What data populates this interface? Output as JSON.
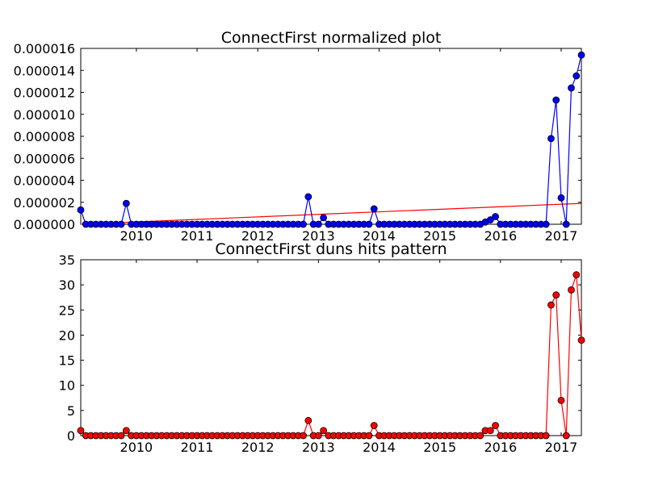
{
  "chart_data": [
    {
      "type": "line",
      "title": "ConnectFirst normalized plot",
      "xlabel": "",
      "ylabel": "",
      "x_ticks": [
        "2010",
        "2011",
        "2012",
        "2013",
        "2014",
        "2015",
        "2016",
        "2017"
      ],
      "x_range": [
        "2009-02",
        "2017-05"
      ],
      "y_ticks": [
        "0.000000",
        "0.000002",
        "0.000004",
        "0.000006",
        "0.000008",
        "0.000010",
        "0.000012",
        "0.000014",
        "0.000016"
      ],
      "ylim": [
        0,
        1.6e-05
      ],
      "grid": false,
      "legend": "none",
      "series": [
        {
          "color": "#0000ff",
          "marker": "circle",
          "points": [
            {
              "x": "2009-02",
              "y": 1.3e-06
            },
            {
              "x": "2009-11",
              "y": 1.9e-06
            },
            {
              "x": "2012-11",
              "y": 2.5e-06
            },
            {
              "x": "2013-02",
              "y": 6e-07
            },
            {
              "x": "2013-12",
              "y": 1.4e-06
            },
            {
              "x": "2015-10",
              "y": 2e-07
            },
            {
              "x": "2015-11",
              "y": 4e-07
            },
            {
              "x": "2015-12",
              "y": 7e-07
            },
            {
              "x": "2016-11",
              "y": 7.8e-06
            },
            {
              "x": "2016-12",
              "y": 1.13e-05
            },
            {
              "x": "2017-01",
              "y": 2.4e-06
            },
            {
              "x": "2017-02",
              "y": 0.0
            },
            {
              "x": "2017-03",
              "y": 1.24e-05
            },
            {
              "x": "2017-04",
              "y": 1.35e-05
            },
            {
              "x": "2017-05",
              "y": 1.54e-05
            }
          ]
        }
      ],
      "trend_line": {
        "color": "#ff0000",
        "x": [
          "2009-02",
          "2017-05"
        ],
        "y": [
          0.0,
          1.9e-06
        ]
      }
    },
    {
      "type": "line",
      "title": "ConnectFirst duns hits pattern",
      "xlabel": "",
      "ylabel": "",
      "x_ticks": [
        "2010",
        "2011",
        "2012",
        "2013",
        "2014",
        "2015",
        "2016",
        "2017"
      ],
      "x_range": [
        "2009-02",
        "2017-05"
      ],
      "y_ticks": [
        "0",
        "5",
        "10",
        "15",
        "20",
        "25",
        "30",
        "35"
      ],
      "ylim": [
        0,
        35
      ],
      "grid": false,
      "legend": "none",
      "series": [
        {
          "color": "#ff0000",
          "marker": "circle",
          "points": [
            {
              "x": "2009-02",
              "y": 1
            },
            {
              "x": "2009-11",
              "y": 1
            },
            {
              "x": "2012-11",
              "y": 3
            },
            {
              "x": "2013-02",
              "y": 1
            },
            {
              "x": "2013-12",
              "y": 2
            },
            {
              "x": "2015-10",
              "y": 1
            },
            {
              "x": "2015-11",
              "y": 1
            },
            {
              "x": "2015-12",
              "y": 2
            },
            {
              "x": "2016-11",
              "y": 26
            },
            {
              "x": "2016-12",
              "y": 28
            },
            {
              "x": "2017-01",
              "y": 7
            },
            {
              "x": "2017-02",
              "y": 0
            },
            {
              "x": "2017-03",
              "y": 29
            },
            {
              "x": "2017-04",
              "y": 32
            },
            {
              "x": "2017-05",
              "y": 19
            }
          ]
        }
      ]
    }
  ]
}
